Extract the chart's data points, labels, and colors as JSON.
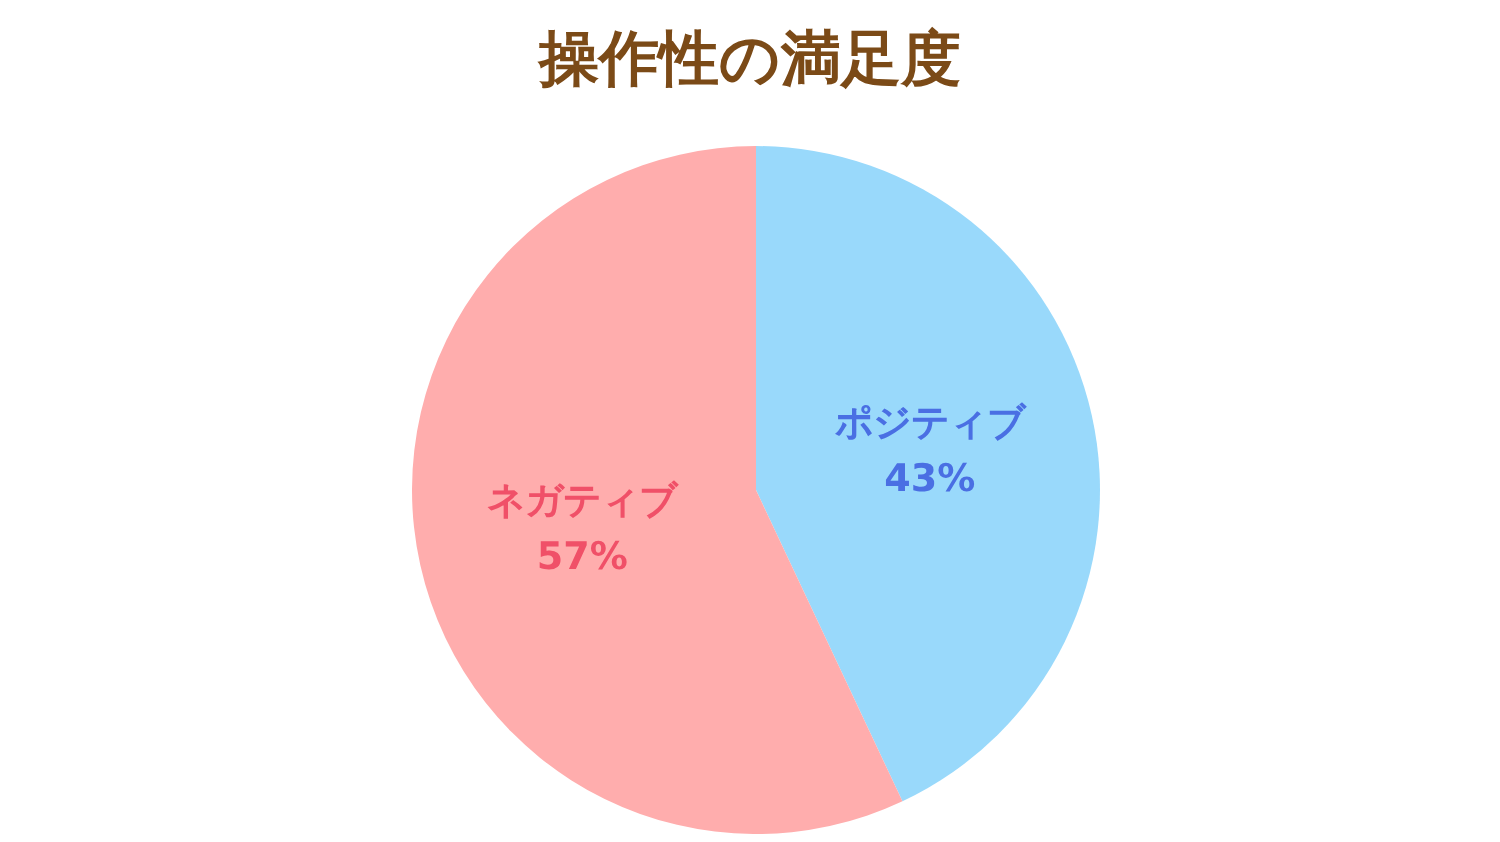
{
  "chart_data": {
    "type": "pie",
    "title": "操作性の満足度",
    "categories": [
      "ポジティブ",
      "ネガティブ"
    ],
    "values": [
      43,
      57
    ],
    "value_labels": [
      "43%",
      "57%"
    ],
    "colors": [
      "#99d9fb",
      "#ffadad"
    ]
  }
}
